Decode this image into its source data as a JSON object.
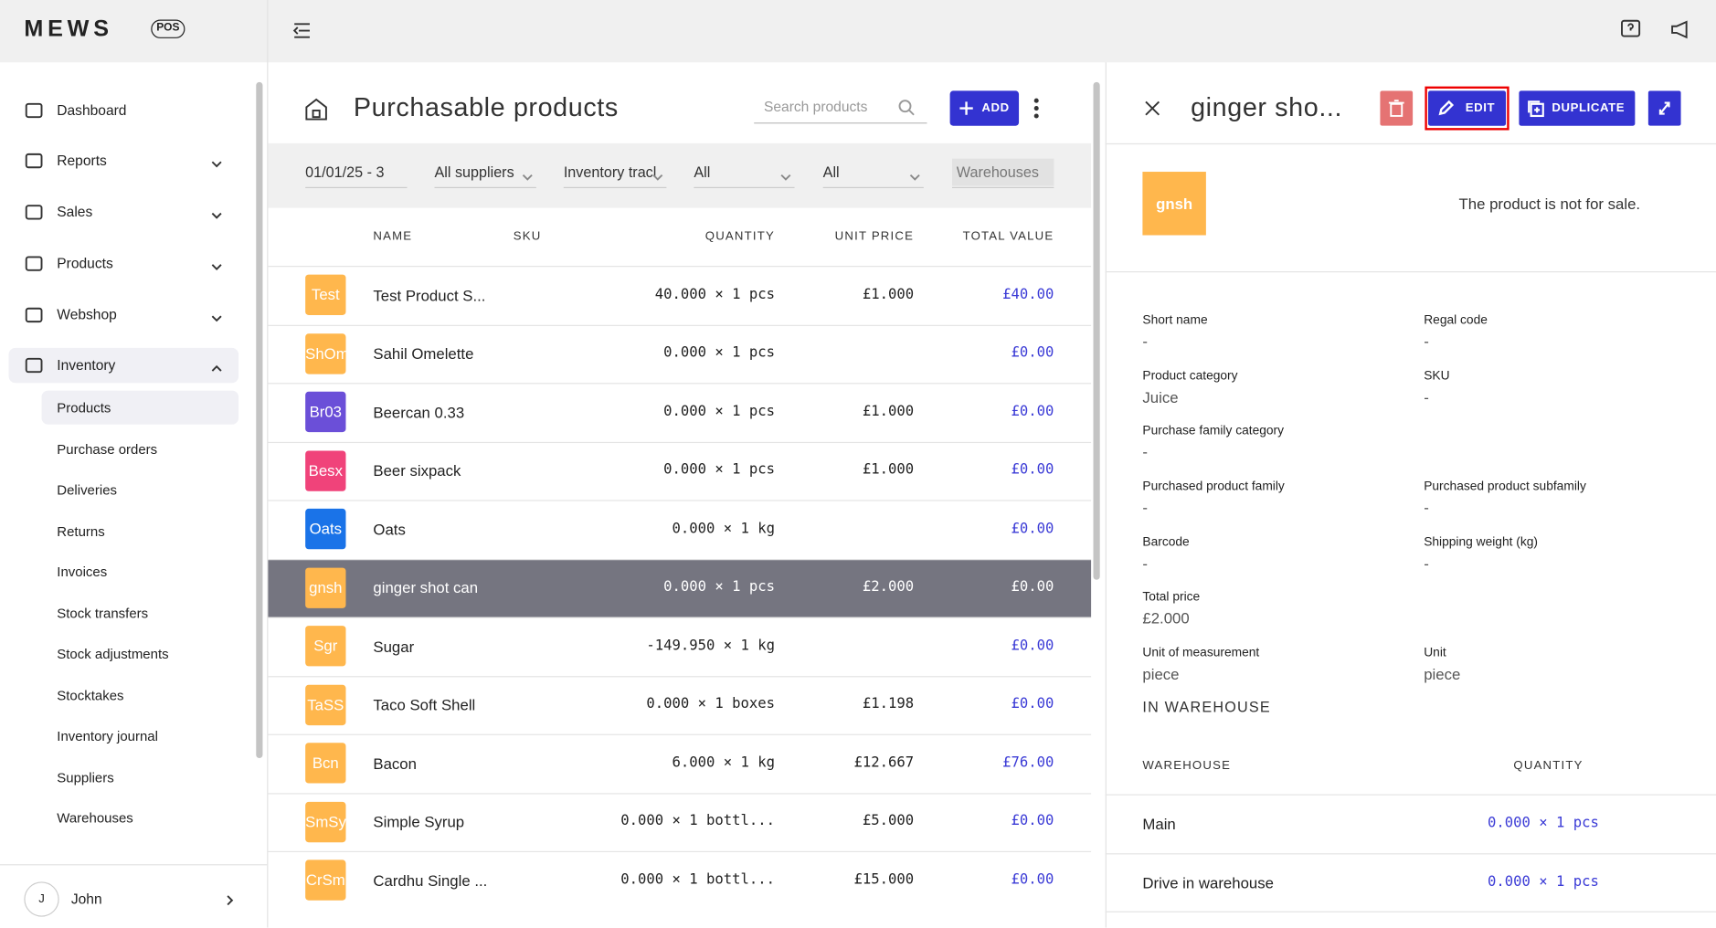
{
  "brand": {
    "logo": "MEWS",
    "badge": "POS"
  },
  "sidebar": {
    "items": [
      {
        "label": "Dashboard",
        "expand": false
      },
      {
        "label": "Reports",
        "expand": true
      },
      {
        "label": "Sales",
        "expand": true
      },
      {
        "label": "Products",
        "expand": true
      },
      {
        "label": "Webshop",
        "expand": true
      },
      {
        "label": "Inventory",
        "expand": true
      }
    ],
    "submenu": [
      "Products",
      "Purchase orders",
      "Deliveries",
      "Returns",
      "Invoices",
      "Stock transfers",
      "Stock adjustments",
      "Stocktakes",
      "Inventory journal",
      "Suppliers",
      "Warehouses"
    ],
    "user": {
      "initial": "J",
      "name": "John"
    }
  },
  "list": {
    "title": "Purchasable products",
    "search_placeholder": "Search products",
    "add_button": "ADD",
    "filters": [
      "01/01/25 - 3",
      "All suppliers",
      "Inventory tracl",
      "All",
      "All",
      "Warehouses"
    ],
    "columns": [
      "NAME",
      "SKU",
      "QUANTITY",
      "UNIT PRICE",
      "TOTAL VALUE"
    ],
    "rows": [
      {
        "badge": "Test",
        "color": "#ffb74d",
        "name": "Test Product S...",
        "quantity": "40.000 × 1 pcs",
        "unit_price": "£1.000",
        "total": "£40.00"
      },
      {
        "badge": "ShOm",
        "color": "#ffb74d",
        "name": "Sahil Omelette",
        "quantity": "0.000 × 1 pcs",
        "unit_price": null,
        "total": "£0.00"
      },
      {
        "badge": "Br03",
        "color": "#6b4fd8",
        "name": "Beercan 0.33",
        "quantity": "0.000 × 1 pcs",
        "unit_price": "£1.000",
        "total": "£0.00"
      },
      {
        "badge": "Besx",
        "color": "#f0437a",
        "name": "Beer sixpack",
        "quantity": "0.000 × 1 pcs",
        "unit_price": "£1.000",
        "total": "£0.00"
      },
      {
        "badge": "Oats",
        "color": "#1a73e8",
        "name": "Oats",
        "quantity": "0.000 × 1 kg",
        "unit_price": null,
        "total": "£0.00"
      },
      {
        "badge": "gnsh",
        "color": "#ffb74d",
        "name": "ginger shot can",
        "quantity": "0.000 × 1 pcs",
        "unit_price": "£2.000",
        "total": "£0.00",
        "selected": true
      },
      {
        "badge": "Sgr",
        "color": "#ffb74d",
        "name": "Sugar",
        "quantity": "-149.950 × 1 kg",
        "unit_price": null,
        "total": "£0.00"
      },
      {
        "badge": "TaSS",
        "color": "#ffb74d",
        "name": "Taco Soft Shell",
        "quantity": "0.000 × 1 boxes",
        "unit_price": "£1.198",
        "total": "£0.00"
      },
      {
        "badge": "Bcn",
        "color": "#ffb74d",
        "name": "Bacon",
        "quantity": "6.000 × 1 kg",
        "unit_price": "£12.667",
        "total": "£76.00"
      },
      {
        "badge": "SmSy",
        "color": "#ffb74d",
        "name": "Simple Syrup",
        "quantity": "0.000 × 1 bottl...",
        "unit_price": "£5.000",
        "total": "£0.00"
      },
      {
        "badge": "CrSm",
        "color": "#ffb74d",
        "name": "Cardhu Single ...",
        "quantity": "0.000 × 1 bottl...",
        "unit_price": "£15.000",
        "total": "£0.00"
      }
    ]
  },
  "detail": {
    "title": "ginger sho...",
    "edit_button": "EDIT",
    "duplicate_button": "DUPLICATE",
    "badge": "gnsh",
    "sale_note": "The product is not for sale.",
    "fields": [
      {
        "label": "Short name",
        "value": "-"
      },
      {
        "label": "Regal code",
        "value": "-"
      },
      {
        "label": "Product category",
        "value": "Juice"
      },
      {
        "label": "SKU",
        "value": "-"
      },
      {
        "label": "Purchase family category",
        "value": "-"
      },
      {
        "label": "Purchased product family",
        "value": "-"
      },
      {
        "label": "Purchased product subfamily",
        "value": "-"
      },
      {
        "label": "Barcode",
        "value": "-"
      },
      {
        "label": "Shipping weight (kg)",
        "value": "-"
      },
      {
        "label": "Total price",
        "value": "£2.000"
      },
      {
        "label": "Unit of measurement",
        "value": "piece"
      },
      {
        "label": "Unit",
        "value": "piece"
      }
    ],
    "warehouse_section": "IN WAREHOUSE",
    "warehouse_columns": [
      "WAREHOUSE",
      "QUANTITY"
    ],
    "warehouses": [
      {
        "name": "Main",
        "quantity": "0.000 × 1 pcs"
      },
      {
        "name": "Drive in warehouse",
        "quantity": "0.000 × 1 pcs"
      }
    ]
  }
}
